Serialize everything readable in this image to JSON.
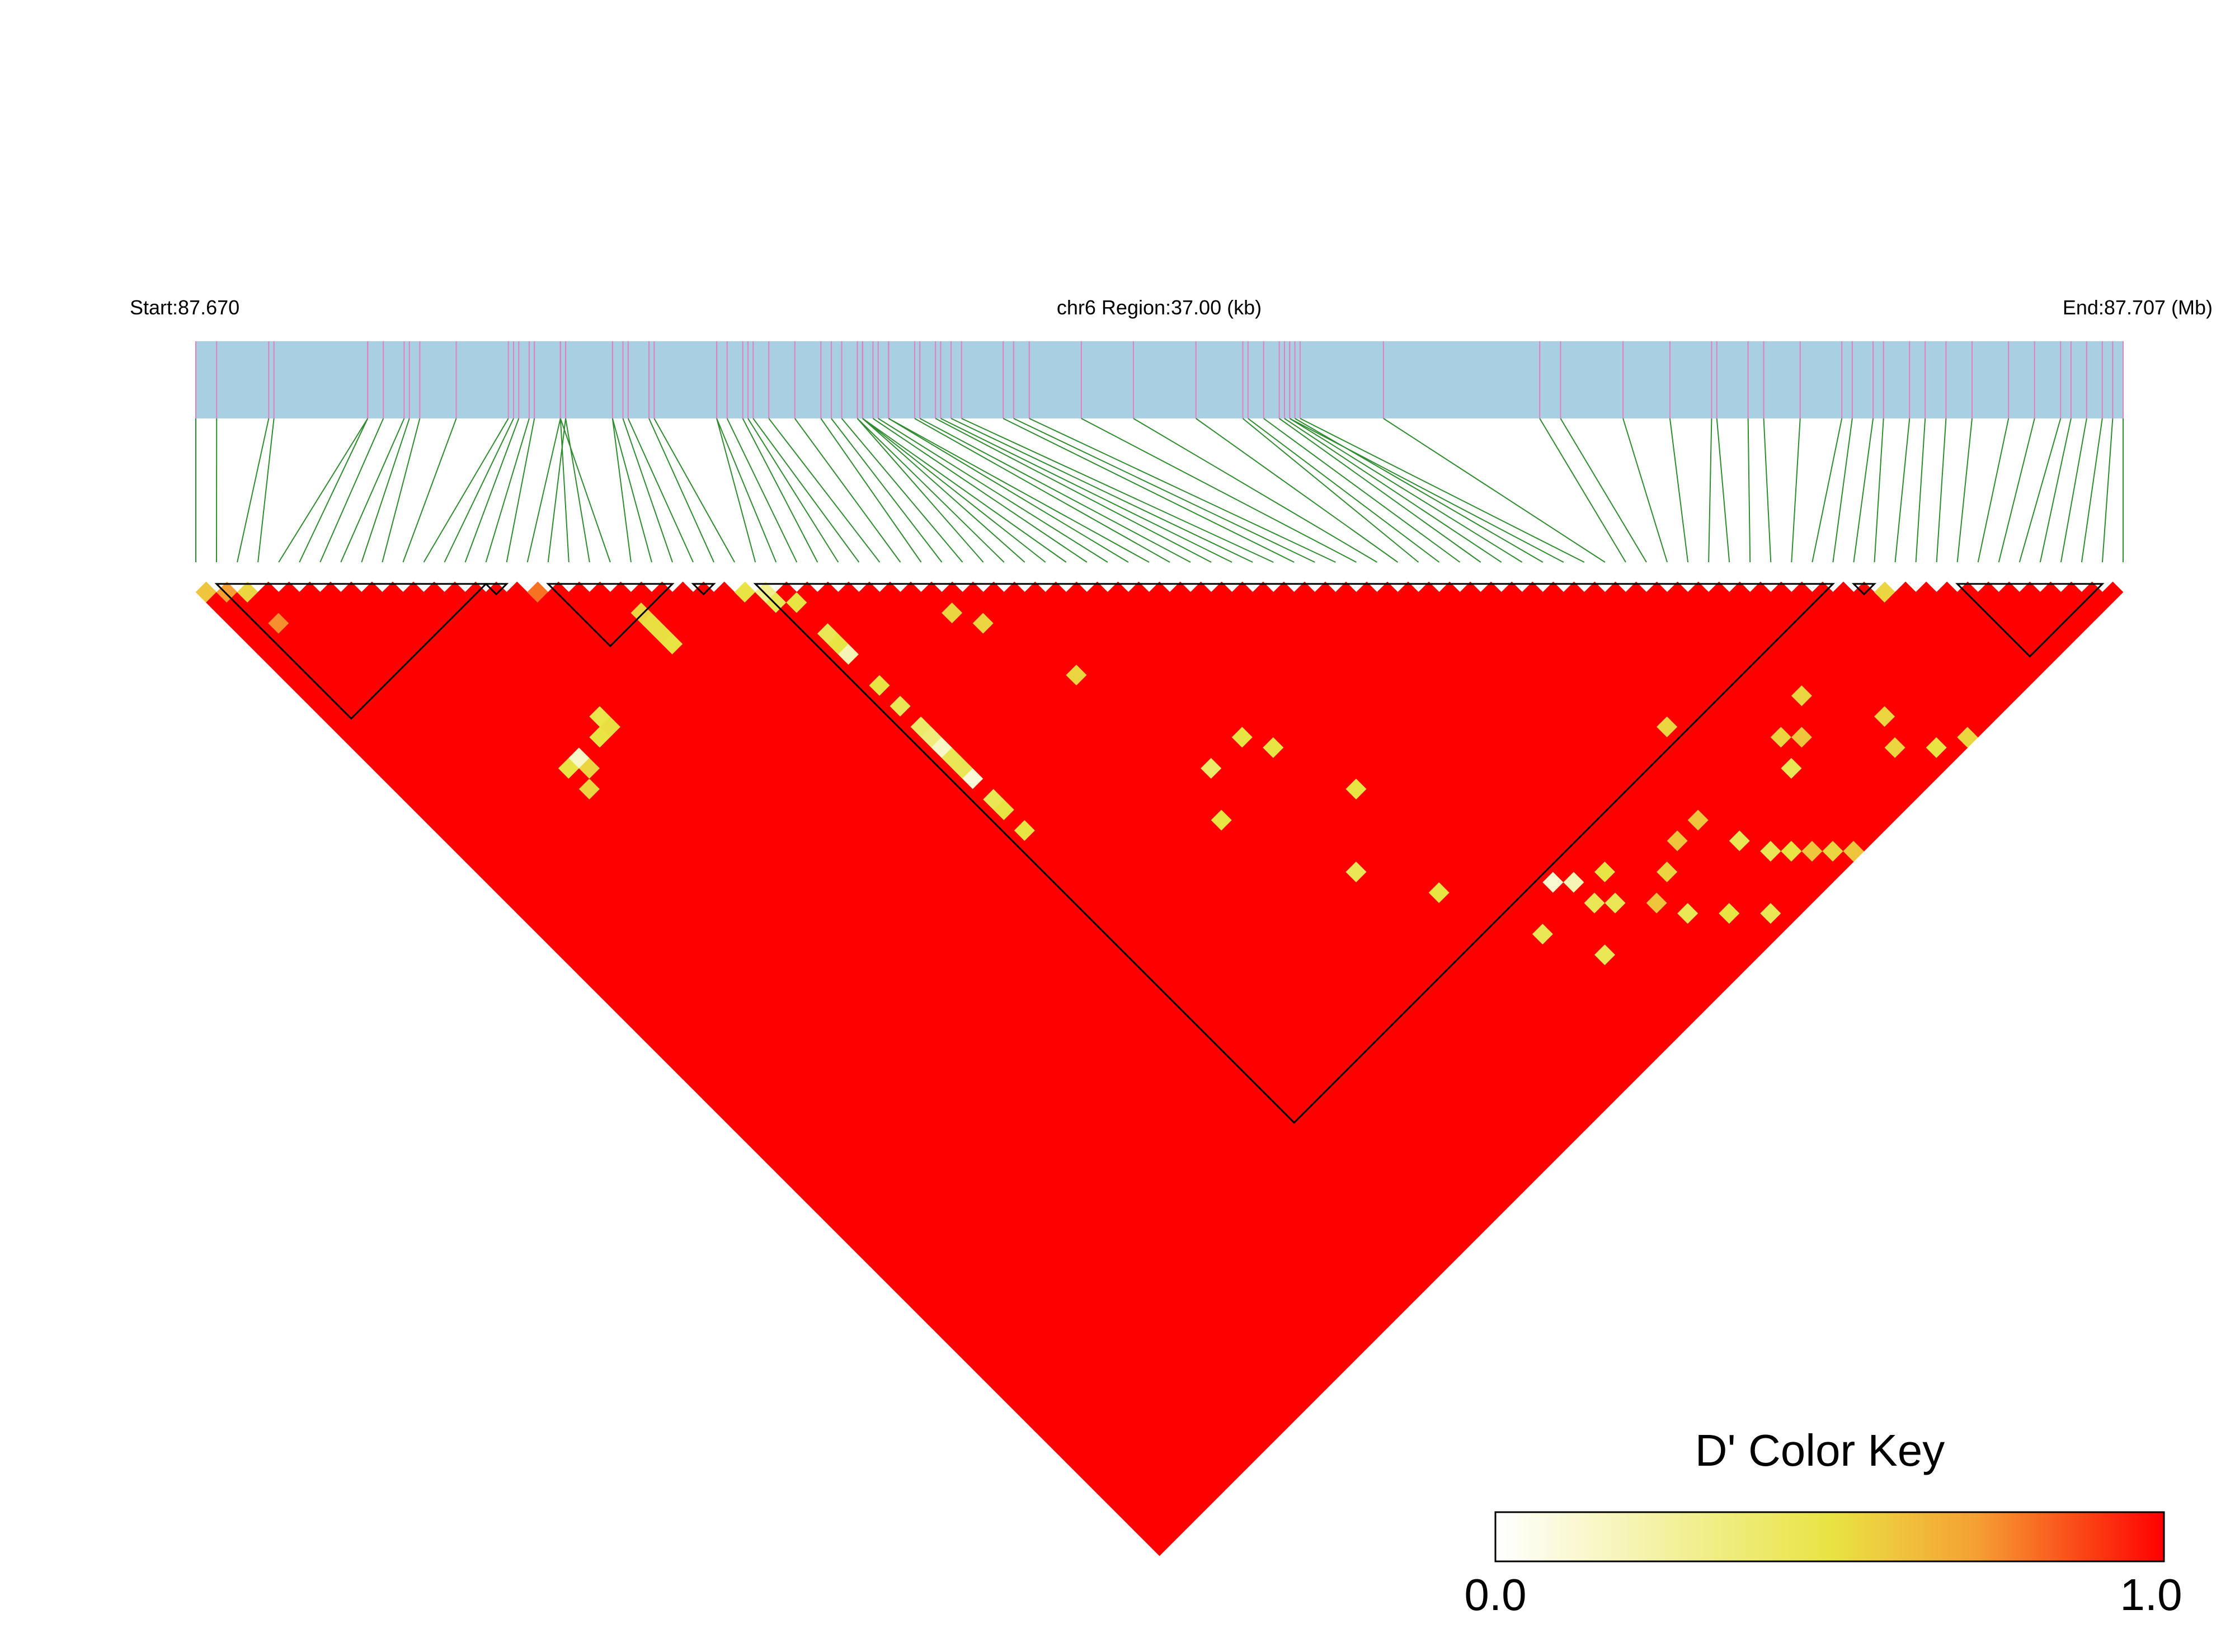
{
  "header": {
    "start_label": "Start:87.670",
    "region_label": "chr6 Region:37.00 (kb)",
    "end_label": "End:87.707 (Mb)"
  },
  "colors": {
    "track_fill": "#a9cfe3",
    "snp_tick": "#e27fbf",
    "connector": "#2e8b2e",
    "block_outline": "#000000",
    "scale": [
      "#ffffff",
      "#e8e444",
      "#f5a033",
      "#ff0000"
    ]
  },
  "color_key": {
    "title": "D' Color Key",
    "min_label": "0.0",
    "max_label": "1.0"
  },
  "chart_data": {
    "type": "heatmap",
    "metric": "D'",
    "region_start_mb": 87.67,
    "region_end_mb": 87.707,
    "region_length_kb": 37.0,
    "chromosome": "chr6",
    "value_range": [
      0.0,
      1.0
    ],
    "n_snps": 94,
    "snp_positions_mb": [
      87.67,
      87.6704,
      87.6714,
      87.6715,
      87.6733,
      87.6733,
      87.6736,
      87.674,
      87.6741,
      87.6743,
      87.675,
      87.676,
      87.6761,
      87.6762,
      87.6764,
      87.6765,
      87.677,
      87.6771,
      87.677,
      87.6771,
      87.677,
      87.678,
      87.678,
      87.6782,
      87.6783,
      87.6787,
      87.6788,
      87.68,
      87.68,
      87.6802,
      87.6805,
      87.6806,
      87.6807,
      87.681,
      87.6815,
      87.682,
      87.6822,
      87.6824,
      87.6827,
      87.6827,
      87.6828,
      87.6828,
      87.6828,
      87.683,
      87.6831,
      87.6833,
      87.6833,
      87.6838,
      87.6839,
      87.6842,
      87.6843,
      87.6845,
      87.6847,
      87.6855,
      87.6857,
      87.686,
      87.687,
      87.688,
      87.6892,
      87.6901,
      87.6902,
      87.6905,
      87.6908,
      87.6909,
      87.691,
      87.6911,
      87.691,
      87.6912,
      87.6928,
      87.6958,
      87.6962,
      87.6974,
      87.6983,
      87.6991,
      87.6992,
      87.6998,
      87.7001,
      87.7008,
      87.7016,
      87.7018,
      87.7022,
      87.7024,
      87.7029,
      87.7032,
      87.7036,
      87.7041,
      87.7048,
      87.7053,
      87.7058,
      87.706,
      87.7063,
      87.7066,
      87.7068,
      87.707
    ],
    "ld_blocks": [
      {
        "first_snp": 1,
        "last_snp": 14
      },
      {
        "first_snp": 14,
        "last_snp": 15
      },
      {
        "first_snp": 17,
        "last_snp": 23
      },
      {
        "first_snp": 24,
        "last_snp": 25
      },
      {
        "first_snp": 27,
        "last_snp": 79
      },
      {
        "first_snp": 80,
        "last_snp": 81
      },
      {
        "first_snp": 85,
        "last_snp": 92
      }
    ],
    "background_value": 1.0,
    "low_ld_pairs": [
      {
        "i": 0,
        "j": 1,
        "value": 0.6
      },
      {
        "i": 1,
        "j": 2,
        "value": 0.72
      },
      {
        "i": 2,
        "j": 3,
        "value": 0.55
      },
      {
        "i": 2,
        "j": 6,
        "value": 0.75
      },
      {
        "i": 16,
        "j": 17,
        "value": 0.8
      },
      {
        "i": 20,
        "j": 23,
        "value": 0.55
      },
      {
        "i": 20,
        "j": 24,
        "value": 0.52
      },
      {
        "i": 20,
        "j": 25,
        "value": 0.52
      },
      {
        "i": 20,
        "j": 26,
        "value": 0.5
      },
      {
        "i": 13,
        "j": 26,
        "value": 0.48
      },
      {
        "i": 13,
        "j": 27,
        "value": 0.52
      },
      {
        "i": 12,
        "j": 27,
        "value": 0.5
      },
      {
        "i": 10,
        "j": 27,
        "value": 0.15
      },
      {
        "i": 9,
        "j": 27,
        "value": 0.5
      },
      {
        "i": 10,
        "j": 28,
        "value": 0.55
      },
      {
        "i": 9,
        "j": 29,
        "value": 0.55
      },
      {
        "i": 26,
        "j": 27,
        "value": 0.5
      },
      {
        "i": 27,
        "j": 28,
        "value": 0.3
      },
      {
        "i": 27,
        "j": 29,
        "value": 0.45
      },
      {
        "i": 28,
        "j": 30,
        "value": 0.5
      },
      {
        "i": 28,
        "j": 33,
        "value": 0.45
      },
      {
        "i": 28,
        "j": 34,
        "value": 0.5
      },
      {
        "i": 28,
        "j": 35,
        "value": 0.2
      },
      {
        "i": 28,
        "j": 38,
        "value": 0.5
      },
      {
        "i": 28,
        "j": 40,
        "value": 0.45
      },
      {
        "i": 28,
        "j": 42,
        "value": 0.4
      },
      {
        "i": 28,
        "j": 43,
        "value": 0.35
      },
      {
        "i": 28,
        "j": 44,
        "value": 0.15
      },
      {
        "i": 28,
        "j": 45,
        "value": 0.45
      },
      {
        "i": 28,
        "j": 46,
        "value": 0.45
      },
      {
        "i": 28,
        "j": 47,
        "value": 0.1
      },
      {
        "i": 28,
        "j": 49,
        "value": 0.45
      },
      {
        "i": 28,
        "j": 50,
        "value": 0.5
      },
      {
        "i": 28,
        "j": 52,
        "value": 0.5
      },
      {
        "i": 35,
        "j": 38,
        "value": 0.55
      },
      {
        "i": 36,
        "j": 40,
        "value": 0.55
      },
      {
        "i": 38,
        "j": 47,
        "value": 0.55
      },
      {
        "i": 43,
        "j": 58,
        "value": 0.5
      },
      {
        "i": 44,
        "j": 60,
        "value": 0.5
      },
      {
        "i": 46,
        "j": 66,
        "value": 0.5
      },
      {
        "i": 51,
        "j": 80,
        "value": 0.12
      },
      {
        "i": 52,
        "j": 81,
        "value": 0.2
      },
      {
        "i": 52,
        "j": 83,
        "value": 0.45
      },
      {
        "i": 53,
        "j": 84,
        "value": 0.45
      },
      {
        "i": 54,
        "j": 82,
        "value": 0.5
      },
      {
        "i": 56,
        "j": 88,
        "value": 0.45
      },
      {
        "i": 58,
        "j": 90,
        "value": 0.5
      },
      {
        "i": 60,
        "j": 92,
        "value": 0.45
      },
      {
        "i": 62,
        "j": 87,
        "value": 0.45
      },
      {
        "i": 63,
        "j": 89,
        "value": 0.45
      },
      {
        "i": 64,
        "j": 90,
        "value": 0.5
      },
      {
        "i": 65,
        "j": 91,
        "value": 0.6
      },
      {
        "i": 66,
        "j": 92,
        "value": 0.55
      },
      {
        "i": 67,
        "j": 93,
        "value": 0.6
      },
      {
        "i": 68,
        "j": 86,
        "value": 0.45
      },
      {
        "i": 69,
        "j": 84,
        "value": 0.55
      },
      {
        "i": 70,
        "j": 85,
        "value": 0.6
      },
      {
        "i": 72,
        "j": 83,
        "value": 0.55
      },
      {
        "i": 74,
        "j": 90,
        "value": 0.55
      },
      {
        "i": 75,
        "j": 88,
        "value": 0.55
      },
      {
        "i": 76,
        "j": 92,
        "value": 0.5
      },
      {
        "i": 78,
        "j": 93,
        "value": 0.55
      },
      {
        "i": 81,
        "j": 82,
        "value": 0.55
      },
      {
        "i": 40,
        "j": 58,
        "value": 0.4
      },
      {
        "i": 38,
        "j": 61,
        "value": 0.5
      },
      {
        "i": 42,
        "j": 70,
        "value": 0.45
      },
      {
        "i": 45,
        "j": 75,
        "value": 0.5
      },
      {
        "i": 48,
        "j": 82,
        "value": 0.45
      },
      {
        "i": 50,
        "j": 86,
        "value": 0.45
      },
      {
        "i": 55,
        "j": 86,
        "value": 0.6
      },
      {
        "i": 57,
        "j": 85,
        "value": 0.55
      },
      {
        "i": 59,
        "j": 84,
        "value": 0.6
      },
      {
        "i": 61,
        "j": 84,
        "value": 0.6
      },
      {
        "i": 64,
        "j": 78,
        "value": 0.55
      }
    ]
  }
}
